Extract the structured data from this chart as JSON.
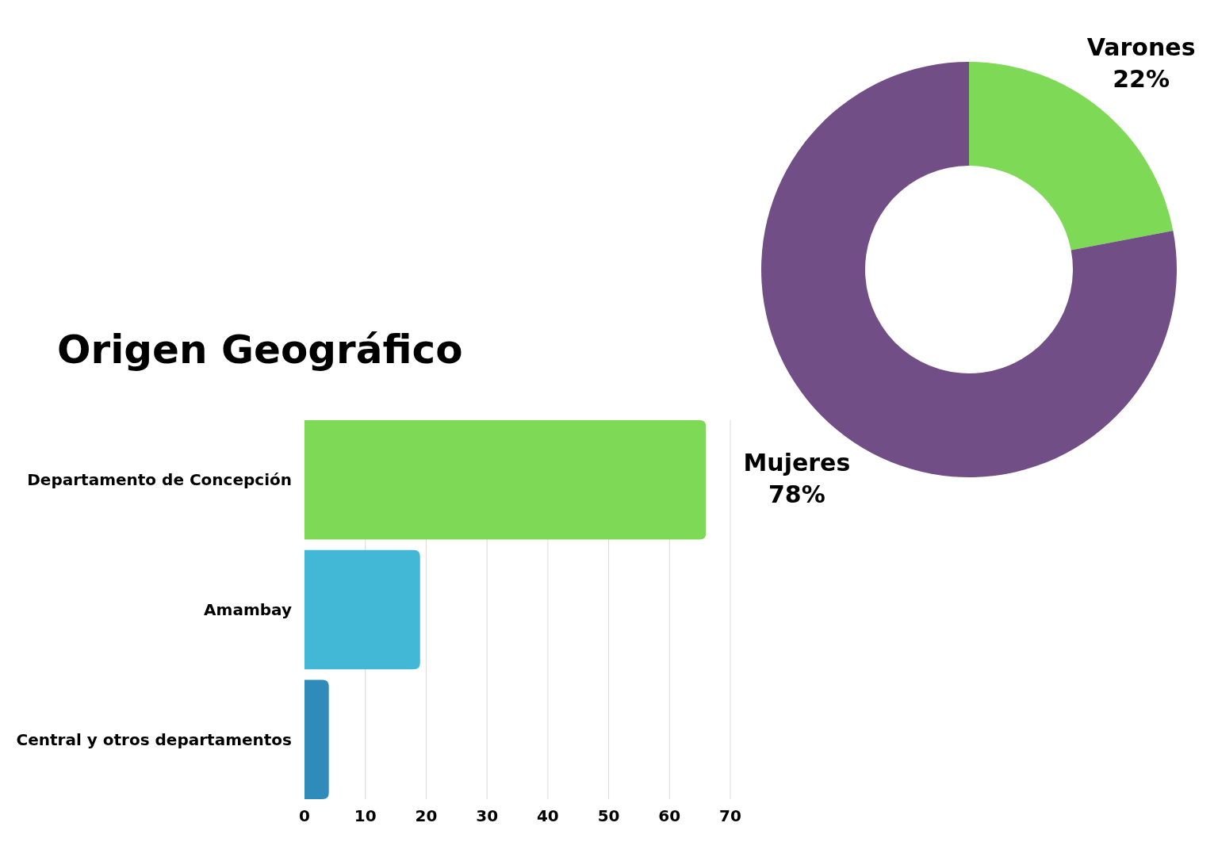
{
  "chart_data": [
    {
      "type": "donut",
      "categories": [
        "Varones",
        "Mujeres"
      ],
      "values": [
        22,
        78
      ],
      "colors": [
        "#7ed957",
        "#714e85"
      ],
      "value_labels": [
        "22%",
        "78%"
      ]
    },
    {
      "type": "bar",
      "title": "Origen Geográfico",
      "orientation": "horizontal",
      "categories": [
        "Departamento de Concepción",
        "Amambay",
        "Central y otros departamentos"
      ],
      "values": [
        66,
        19,
        4
      ],
      "colors": [
        "#7ed957",
        "#42b8d6",
        "#2e8bba"
      ],
      "xlim": [
        0,
        70
      ],
      "xticks": [
        0,
        10,
        20,
        30,
        40,
        50,
        60,
        70
      ],
      "grid": "x"
    }
  ]
}
